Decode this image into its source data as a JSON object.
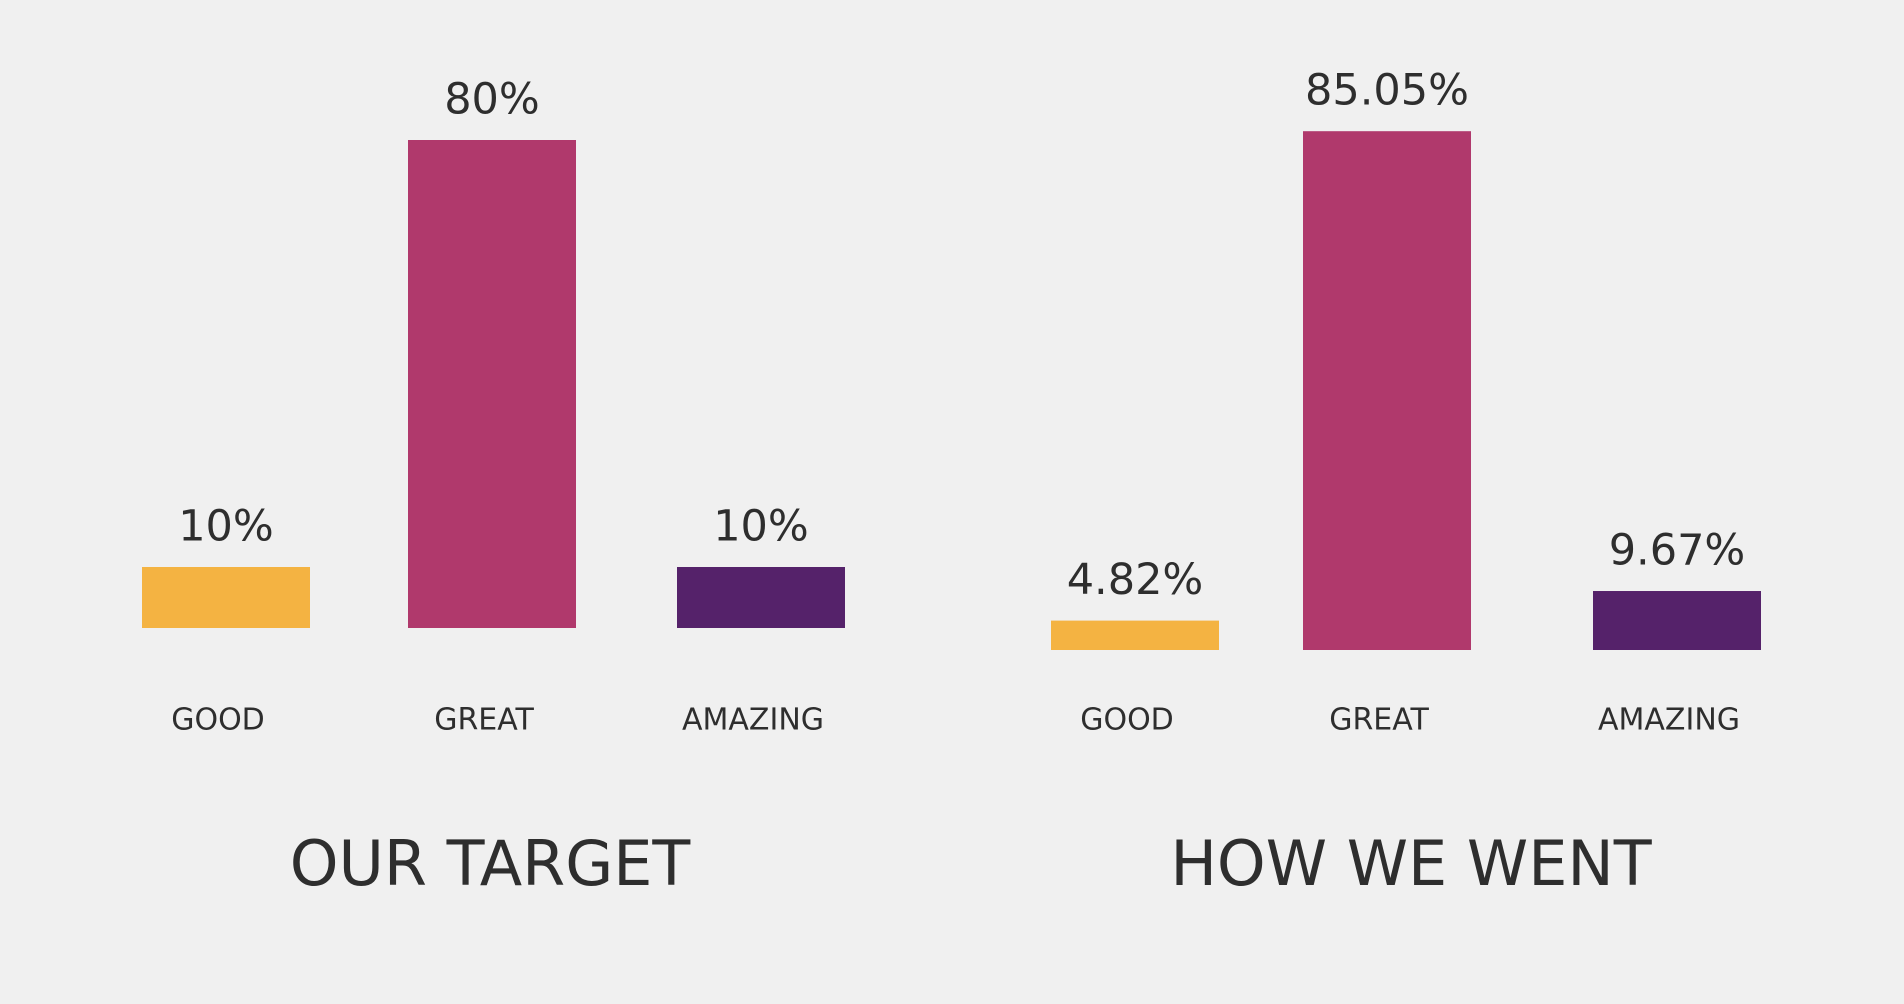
{
  "chart_data": [
    {
      "type": "bar",
      "title": "OUR TARGET",
      "categories": [
        "GOOD",
        "GREAT",
        "AMAZING"
      ],
      "values": [
        10,
        80,
        10
      ],
      "value_labels": [
        "10%",
        "80%",
        "10%"
      ],
      "colors": [
        "#f4b342",
        "#b0396c",
        "#55226a"
      ]
    },
    {
      "type": "bar",
      "title": "HOW WE WENT",
      "categories": [
        "GOOD",
        "GREAT",
        "AMAZING"
      ],
      "values": [
        4.82,
        85.05,
        9.67
      ],
      "value_labels": [
        "4.82%",
        "85.05%",
        "9.67%"
      ],
      "colors": [
        "#f4b342",
        "#b0396c",
        "#55226a"
      ]
    }
  ]
}
